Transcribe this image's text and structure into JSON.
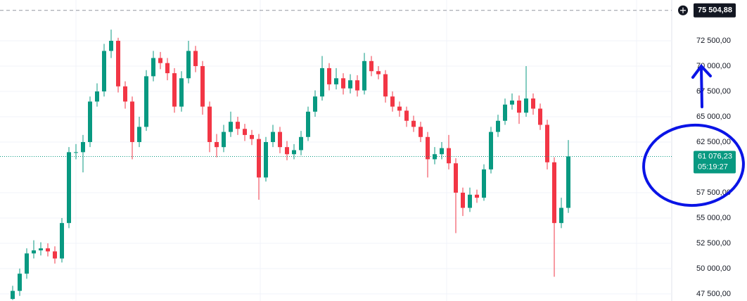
{
  "chart_data": {
    "type": "candlestick",
    "open": [
      47000,
      47800,
      49500,
      51500,
      51800,
      52000,
      51700,
      51000,
      54500,
      61500,
      61500,
      62500,
      66500,
      67500,
      71500,
      72500,
      68000,
      66500,
      62500,
      64000,
      69000,
      70800,
      70300,
      69300,
      66000,
      68800,
      71500,
      70000,
      66000,
      62500,
      62000,
      63500,
      64500,
      63800,
      63200,
      62800,
      59000,
      62500,
      63500,
      62000,
      61300,
      61700,
      63000,
      65500,
      67000,
      69800,
      68200,
      68800,
      67800,
      68600,
      67600,
      70500,
      69500,
      69200,
      67000,
      66000,
      65600,
      64600,
      64000,
      63000,
      60800,
      61300,
      61900,
      60400,
      57500,
      56000,
      57300,
      57000,
      59800,
      63500,
      64600,
      66200,
      66600,
      65400,
      66800,
      65800,
      64200,
      60500,
      54500,
      56000
    ],
    "high": [
      48300,
      50000,
      52000,
      52800,
      52600,
      52500,
      52200,
      55000,
      62000,
      62300,
      63200,
      67000,
      68300,
      72200,
      73600,
      72800,
      68500,
      67000,
      65000,
      69600,
      71500,
      71400,
      70800,
      69800,
      69500,
      72500,
      72000,
      70500,
      66500,
      63300,
      64200,
      65500,
      65000,
      64300,
      63700,
      63300,
      63000,
      64200,
      64000,
      62600,
      62300,
      63600,
      66000,
      67600,
      71000,
      70300,
      69800,
      69300,
      69200,
      69100,
      71300,
      71000,
      70000,
      69600,
      67500,
      66500,
      66000,
      65100,
      64500,
      63500,
      62000,
      62500,
      63200,
      60900,
      58000,
      58000,
      57800,
      60300,
      64000,
      65200,
      66800,
      67300,
      67100,
      70000,
      67300,
      66300,
      64700,
      61000,
      57000,
      62700
    ],
    "low": [
      46900,
      47300,
      49000,
      51000,
      51300,
      51200,
      50500,
      50600,
      54000,
      60800,
      59500,
      62000,
      66000,
      67000,
      70800,
      67400,
      65800,
      60800,
      62000,
      63600,
      68500,
      69700,
      68600,
      65400,
      65500,
      68300,
      69400,
      65200,
      61500,
      61000,
      61500,
      63000,
      63200,
      62600,
      62200,
      56800,
      58600,
      62000,
      61400,
      60700,
      60800,
      61200,
      62600,
      65000,
      66600,
      67600,
      67700,
      67200,
      67300,
      67000,
      67200,
      69000,
      68700,
      66400,
      65500,
      65000,
      64000,
      63500,
      62500,
      59000,
      60300,
      60800,
      59800,
      53500,
      55200,
      55600,
      56500,
      56700,
      59400,
      63000,
      64200,
      65700,
      64300,
      65000,
      65200,
      63700,
      59800,
      49200,
      54000,
      55500
    ],
    "close": [
      47800,
      49500,
      51500,
      51800,
      52000,
      51700,
      51000,
      54500,
      61500,
      61500,
      62500,
      66500,
      67500,
      71500,
      72500,
      68000,
      66500,
      62500,
      64000,
      69000,
      70800,
      70300,
      69300,
      66000,
      68800,
      71500,
      70000,
      66000,
      62500,
      62000,
      63500,
      64500,
      63800,
      63200,
      62800,
      59000,
      62500,
      63500,
      62000,
      61300,
      61700,
      63000,
      65500,
      67000,
      69800,
      68200,
      68800,
      67800,
      68600,
      67600,
      70500,
      69500,
      69200,
      67000,
      66000,
      65600,
      64600,
      64000,
      63000,
      60800,
      61300,
      61900,
      60400,
      57500,
      56000,
      57300,
      57000,
      59800,
      63500,
      64600,
      66200,
      66600,
      65400,
      66800,
      65800,
      64200,
      60500,
      54500,
      56000,
      61076.23
    ],
    "up_color": "#089981",
    "down_color": "#f23645",
    "ylim": [
      46800,
      76530
    ],
    "yticks": [
      {
        "value": 47500,
        "label": "47 500,00"
      },
      {
        "value": 50000,
        "label": "50 000,00"
      },
      {
        "value": 52500,
        "label": "52 500,00"
      },
      {
        "value": 55000,
        "label": "55 000,00"
      },
      {
        "value": 57500,
        "label": "57 500,00"
      },
      {
        "value": 62500,
        "label": "62 500,00"
      },
      {
        "value": 65000,
        "label": "65 000,00"
      },
      {
        "value": 67500,
        "label": "67 500,00"
      },
      {
        "value": 70000,
        "label": "70 000,00"
      },
      {
        "value": 72500,
        "label": "72 500,00"
      }
    ],
    "grid": true,
    "last_price": {
      "value": 61076.23,
      "label": "61 076,23"
    },
    "countdown": "05:19:27",
    "high_marker": {
      "value": 75504.88,
      "label": "75 504,88"
    }
  }
}
